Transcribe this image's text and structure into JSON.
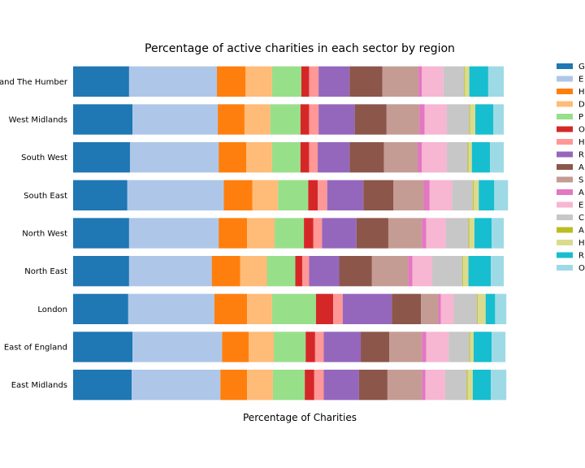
{
  "chart_data": {
    "type": "bar",
    "orientation": "horizontal",
    "stacked": true,
    "title": "Percentage of active charities in each sector by region",
    "xlabel": "Percentage of Charities",
    "ylabel": "",
    "xlim": [
      0,
      100
    ],
    "grid": false,
    "legend_position": "outside-right",
    "categories": [
      "Yorkshire and The Humber",
      "West Midlands",
      "South West",
      "South East",
      "North West",
      "North East",
      "London",
      "East of England",
      "East Midlands"
    ],
    "series": [
      {
        "name": "G",
        "color": "#1f77b4",
        "values": [
          13.0,
          13.8,
          13.2,
          12.6,
          13.0,
          13.0,
          12.8,
          13.8,
          13.6
        ]
      },
      {
        "name": "E",
        "color": "#aec7e8",
        "values": [
          20.4,
          19.8,
          20.6,
          22.4,
          20.8,
          19.2,
          20.0,
          20.8,
          20.6
        ]
      },
      {
        "name": "H",
        "color": "#ff7f0e",
        "values": [
          6.6,
          6.2,
          6.4,
          6.6,
          6.6,
          6.6,
          7.6,
          6.2,
          6.2
        ]
      },
      {
        "name": "D",
        "color": "#ffbb78",
        "values": [
          6.2,
          6.0,
          6.0,
          6.0,
          6.4,
          6.2,
          5.8,
          5.8,
          6.0
        ]
      },
      {
        "name": "P",
        "color": "#98df8a",
        "values": [
          6.8,
          7.0,
          6.6,
          7.0,
          6.8,
          6.6,
          10.2,
          7.4,
          7.4
        ]
      },
      {
        "name": "O",
        "color": "#d62728",
        "values": [
          1.8,
          2.0,
          2.0,
          2.2,
          2.2,
          1.6,
          4.0,
          2.2,
          2.2
        ]
      },
      {
        "name": "H",
        "color": "#ff9896",
        "values": [
          2.2,
          2.2,
          2.0,
          2.2,
          2.0,
          1.6,
          2.2,
          2.0,
          2.2
        ]
      },
      {
        "name": "R",
        "color": "#9467bd",
        "values": [
          7.2,
          8.4,
          7.4,
          8.4,
          8.0,
          7.0,
          11.4,
          8.6,
          8.2
        ]
      },
      {
        "name": "A",
        "color": "#8c564b",
        "values": [
          7.6,
          7.4,
          8.0,
          7.0,
          7.4,
          7.6,
          6.8,
          6.6,
          6.6
        ]
      },
      {
        "name": "S",
        "color": "#c49c94",
        "values": [
          8.4,
          7.6,
          7.8,
          7.0,
          7.8,
          8.4,
          4.0,
          7.6,
          8.0
        ]
      },
      {
        "name": "A",
        "color": "#e377c2",
        "values": [
          0.8,
          1.2,
          1.0,
          1.4,
          1.0,
          1.0,
          0.6,
          1.0,
          0.8
        ]
      },
      {
        "name": "E",
        "color": "#f7b6d2",
        "values": [
          5.0,
          5.2,
          5.8,
          5.2,
          4.6,
          4.6,
          3.0,
          5.2,
          4.6
        ]
      },
      {
        "name": "C",
        "color": "#c7c7c7",
        "values": [
          4.8,
          5.2,
          4.8,
          4.8,
          5.2,
          7.0,
          5.4,
          4.8,
          5.0
        ]
      },
      {
        "name": "A",
        "color": "#bcbd22",
        "values": [
          0.2,
          0.2,
          0.2,
          0.2,
          0.2,
          0.2,
          0.2,
          0.2,
          0.2
        ]
      },
      {
        "name": "H",
        "color": "#dbdb8d",
        "values": [
          1.0,
          1.2,
          0.8,
          1.2,
          1.2,
          1.2,
          1.8,
          0.8,
          1.2
        ]
      },
      {
        "name": "R",
        "color": "#17becf",
        "values": [
          4.4,
          4.2,
          4.2,
          3.6,
          4.0,
          5.2,
          2.2,
          4.2,
          4.2
        ]
      },
      {
        "name": "O",
        "color": "#9edae5",
        "values": [
          3.6,
          2.4,
          3.2,
          3.2,
          2.8,
          3.0,
          2.6,
          3.2,
          3.6
        ]
      }
    ]
  }
}
